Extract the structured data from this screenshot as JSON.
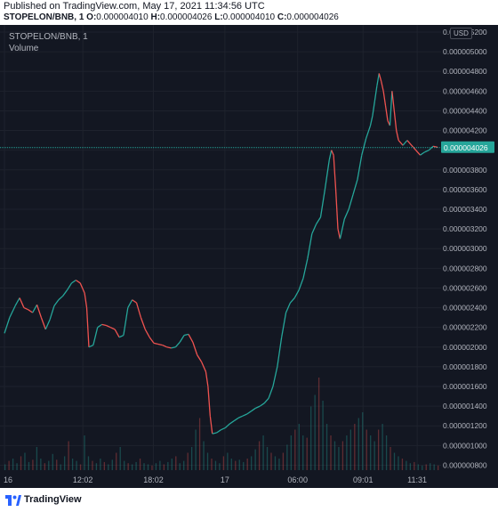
{
  "header": {
    "published": "Published on TradingView.com, May 17, 2021 11:34:56 UTC",
    "symbol": "STOPELON/BNB, 1",
    "o_label": "O:",
    "o_value": "0.000004010",
    "h_label": "H:",
    "h_value": "0.000004026",
    "l_label": "L:",
    "l_value": "0.000004010",
    "c_label": "C:",
    "c_value": "0.000004026"
  },
  "legend": {
    "symbol": "STOPELON/BNB, 1",
    "volume": "Volume"
  },
  "axis": {
    "currency": "USD"
  },
  "footer": {
    "brand": "TradingView"
  },
  "colors": {
    "background": "#131722",
    "up": "#26a69a",
    "down": "#ef5350",
    "last_price": "#26a69a"
  },
  "chart_data": {
    "type": "line",
    "title": "STOPELON/BNB, 1",
    "y_ticks": [
      "0.000000800",
      "0.000001000",
      "0.000001200",
      "0.000001400",
      "0.000001600",
      "0.000001800",
      "0.000002000",
      "0.000002200",
      "0.000002400",
      "0.000002600",
      "0.000002800",
      "0.000003000",
      "0.000003200",
      "0.000003400",
      "0.000003600",
      "0.000003800",
      "0.000004000",
      "0.000004200",
      "0.000004400",
      "0.000004600",
      "0.000004800",
      "0.000005000",
      "0.000005200"
    ],
    "x_ticks": [
      {
        "label": "16",
        "t": 0
      },
      {
        "label": "12:02",
        "t": 0.181
      },
      {
        "label": "18:02",
        "t": 0.344
      },
      {
        "label": "17",
        "t": 0.509
      },
      {
        "label": "06:00",
        "t": 0.677
      },
      {
        "label": "09:01",
        "t": 0.828
      },
      {
        "label": "11:31",
        "t": 0.953
      }
    ],
    "ylim": [
      7.5e-07,
      5.2e-06
    ],
    "last_price": "0.000004026",
    "last_price_value": 4.026e-06,
    "price_series": [
      [
        0.0,
        2.14e-06
      ],
      [
        0.012,
        2.3e-06
      ],
      [
        0.025,
        2.42e-06
      ],
      [
        0.035,
        2.5e-06
      ],
      [
        0.045,
        2.4e-06
      ],
      [
        0.055,
        2.38e-06
      ],
      [
        0.065,
        2.35e-06
      ],
      [
        0.075,
        2.43e-06
      ],
      [
        0.085,
        2.3e-06
      ],
      [
        0.095,
        2.18e-06
      ],
      [
        0.105,
        2.28e-06
      ],
      [
        0.115,
        2.42e-06
      ],
      [
        0.125,
        2.48e-06
      ],
      [
        0.135,
        2.52e-06
      ],
      [
        0.145,
        2.58e-06
      ],
      [
        0.155,
        2.65e-06
      ],
      [
        0.165,
        2.68e-06
      ],
      [
        0.175,
        2.65e-06
      ],
      [
        0.185,
        2.55e-06
      ],
      [
        0.19,
        2.4e-06
      ],
      [
        0.195,
        2e-06
      ],
      [
        0.205,
        2.02e-06
      ],
      [
        0.215,
        2.2e-06
      ],
      [
        0.225,
        2.23e-06
      ],
      [
        0.235,
        2.22e-06
      ],
      [
        0.245,
        2.2e-06
      ],
      [
        0.255,
        2.18e-06
      ],
      [
        0.265,
        2.1e-06
      ],
      [
        0.275,
        2.12e-06
      ],
      [
        0.285,
        2.4e-06
      ],
      [
        0.295,
        2.48e-06
      ],
      [
        0.305,
        2.45e-06
      ],
      [
        0.315,
        2.3e-06
      ],
      [
        0.325,
        2.18e-06
      ],
      [
        0.335,
        2.1e-06
      ],
      [
        0.345,
        2.04e-06
      ],
      [
        0.355,
        2.03e-06
      ],
      [
        0.365,
        2.02e-06
      ],
      [
        0.375,
        2e-06
      ],
      [
        0.385,
        1.99e-06
      ],
      [
        0.395,
        2e-06
      ],
      [
        0.405,
        2.05e-06
      ],
      [
        0.415,
        2.12e-06
      ],
      [
        0.425,
        2.13e-06
      ],
      [
        0.435,
        2.05e-06
      ],
      [
        0.445,
        1.92e-06
      ],
      [
        0.455,
        1.85e-06
      ],
      [
        0.465,
        1.75e-06
      ],
      [
        0.47,
        1.6e-06
      ],
      [
        0.475,
        1.3e-06
      ],
      [
        0.48,
        1.12e-06
      ],
      [
        0.49,
        1.13e-06
      ],
      [
        0.5,
        1.16e-06
      ],
      [
        0.51,
        1.18e-06
      ],
      [
        0.52,
        1.22e-06
      ],
      [
        0.53,
        1.25e-06
      ],
      [
        0.54,
        1.28e-06
      ],
      [
        0.55,
        1.3e-06
      ],
      [
        0.56,
        1.32e-06
      ],
      [
        0.57,
        1.35e-06
      ],
      [
        0.58,
        1.38e-06
      ],
      [
        0.59,
        1.4e-06
      ],
      [
        0.6,
        1.43e-06
      ],
      [
        0.61,
        1.48e-06
      ],
      [
        0.62,
        1.6e-06
      ],
      [
        0.63,
        1.8e-06
      ],
      [
        0.64,
        2.1e-06
      ],
      [
        0.65,
        2.35e-06
      ],
      [
        0.66,
        2.45e-06
      ],
      [
        0.67,
        2.5e-06
      ],
      [
        0.68,
        2.58e-06
      ],
      [
        0.69,
        2.7e-06
      ],
      [
        0.7,
        2.9e-06
      ],
      [
        0.71,
        3.15e-06
      ],
      [
        0.72,
        3.25e-06
      ],
      [
        0.73,
        3.32e-06
      ],
      [
        0.74,
        3.6e-06
      ],
      [
        0.75,
        3.9e-06
      ],
      [
        0.755,
        4e-06
      ],
      [
        0.76,
        3.95e-06
      ],
      [
        0.765,
        3.6e-06
      ],
      [
        0.77,
        3.2e-06
      ],
      [
        0.775,
        3.1e-06
      ],
      [
        0.785,
        3.3e-06
      ],
      [
        0.795,
        3.4e-06
      ],
      [
        0.805,
        3.55e-06
      ],
      [
        0.815,
        3.7e-06
      ],
      [
        0.825,
        3.95e-06
      ],
      [
        0.835,
        4.12e-06
      ],
      [
        0.845,
        4.25e-06
      ],
      [
        0.85,
        4.35e-06
      ],
      [
        0.855,
        4.5e-06
      ],
      [
        0.86,
        4.65e-06
      ],
      [
        0.865,
        4.78e-06
      ],
      [
        0.87,
        4.7e-06
      ],
      [
        0.875,
        4.6e-06
      ],
      [
        0.88,
        4.45e-06
      ],
      [
        0.885,
        4.3e-06
      ],
      [
        0.89,
        4.25e-06
      ],
      [
        0.895,
        4.6e-06
      ],
      [
        0.9,
        4.4e-06
      ],
      [
        0.905,
        4.2e-06
      ],
      [
        0.91,
        4.1e-06
      ],
      [
        0.92,
        4.05e-06
      ],
      [
        0.93,
        4.1e-06
      ],
      [
        0.94,
        4.05e-06
      ],
      [
        0.95,
        4e-06
      ],
      [
        0.96,
        3.95e-06
      ],
      [
        0.97,
        3.98e-06
      ],
      [
        0.98,
        4e-06
      ],
      [
        0.99,
        4.04e-06
      ],
      [
        1.0,
        4.03e-06
      ]
    ],
    "volume_series": [
      0.05,
      0.08,
      0.1,
      0.06,
      0.12,
      0.15,
      0.07,
      0.09,
      0.2,
      0.1,
      0.06,
      0.08,
      0.14,
      0.09,
      0.05,
      0.12,
      0.25,
      0.1,
      0.08,
      0.05,
      0.3,
      0.12,
      0.08,
      0.06,
      0.1,
      0.07,
      0.05,
      0.09,
      0.15,
      0.2,
      0.08,
      0.06,
      0.05,
      0.07,
      0.1,
      0.06,
      0.05,
      0.04,
      0.06,
      0.08,
      0.05,
      0.07,
      0.1,
      0.12,
      0.06,
      0.08,
      0.15,
      0.2,
      0.35,
      0.45,
      0.25,
      0.15,
      0.1,
      0.08,
      0.06,
      0.12,
      0.15,
      0.1,
      0.08,
      0.09,
      0.07,
      0.1,
      0.12,
      0.18,
      0.25,
      0.3,
      0.2,
      0.15,
      0.12,
      0.1,
      0.15,
      0.22,
      0.3,
      0.35,
      0.4,
      0.3,
      0.28,
      0.55,
      0.65,
      0.8,
      0.6,
      0.4,
      0.3,
      0.25,
      0.2,
      0.25,
      0.3,
      0.35,
      0.4,
      0.45,
      0.5,
      0.35,
      0.3,
      0.25,
      0.35,
      0.4,
      0.3,
      0.2,
      0.15,
      0.12,
      0.1,
      0.08,
      0.06,
      0.07,
      0.05,
      0.04,
      0.05,
      0.06,
      0.05,
      0.04
    ]
  }
}
